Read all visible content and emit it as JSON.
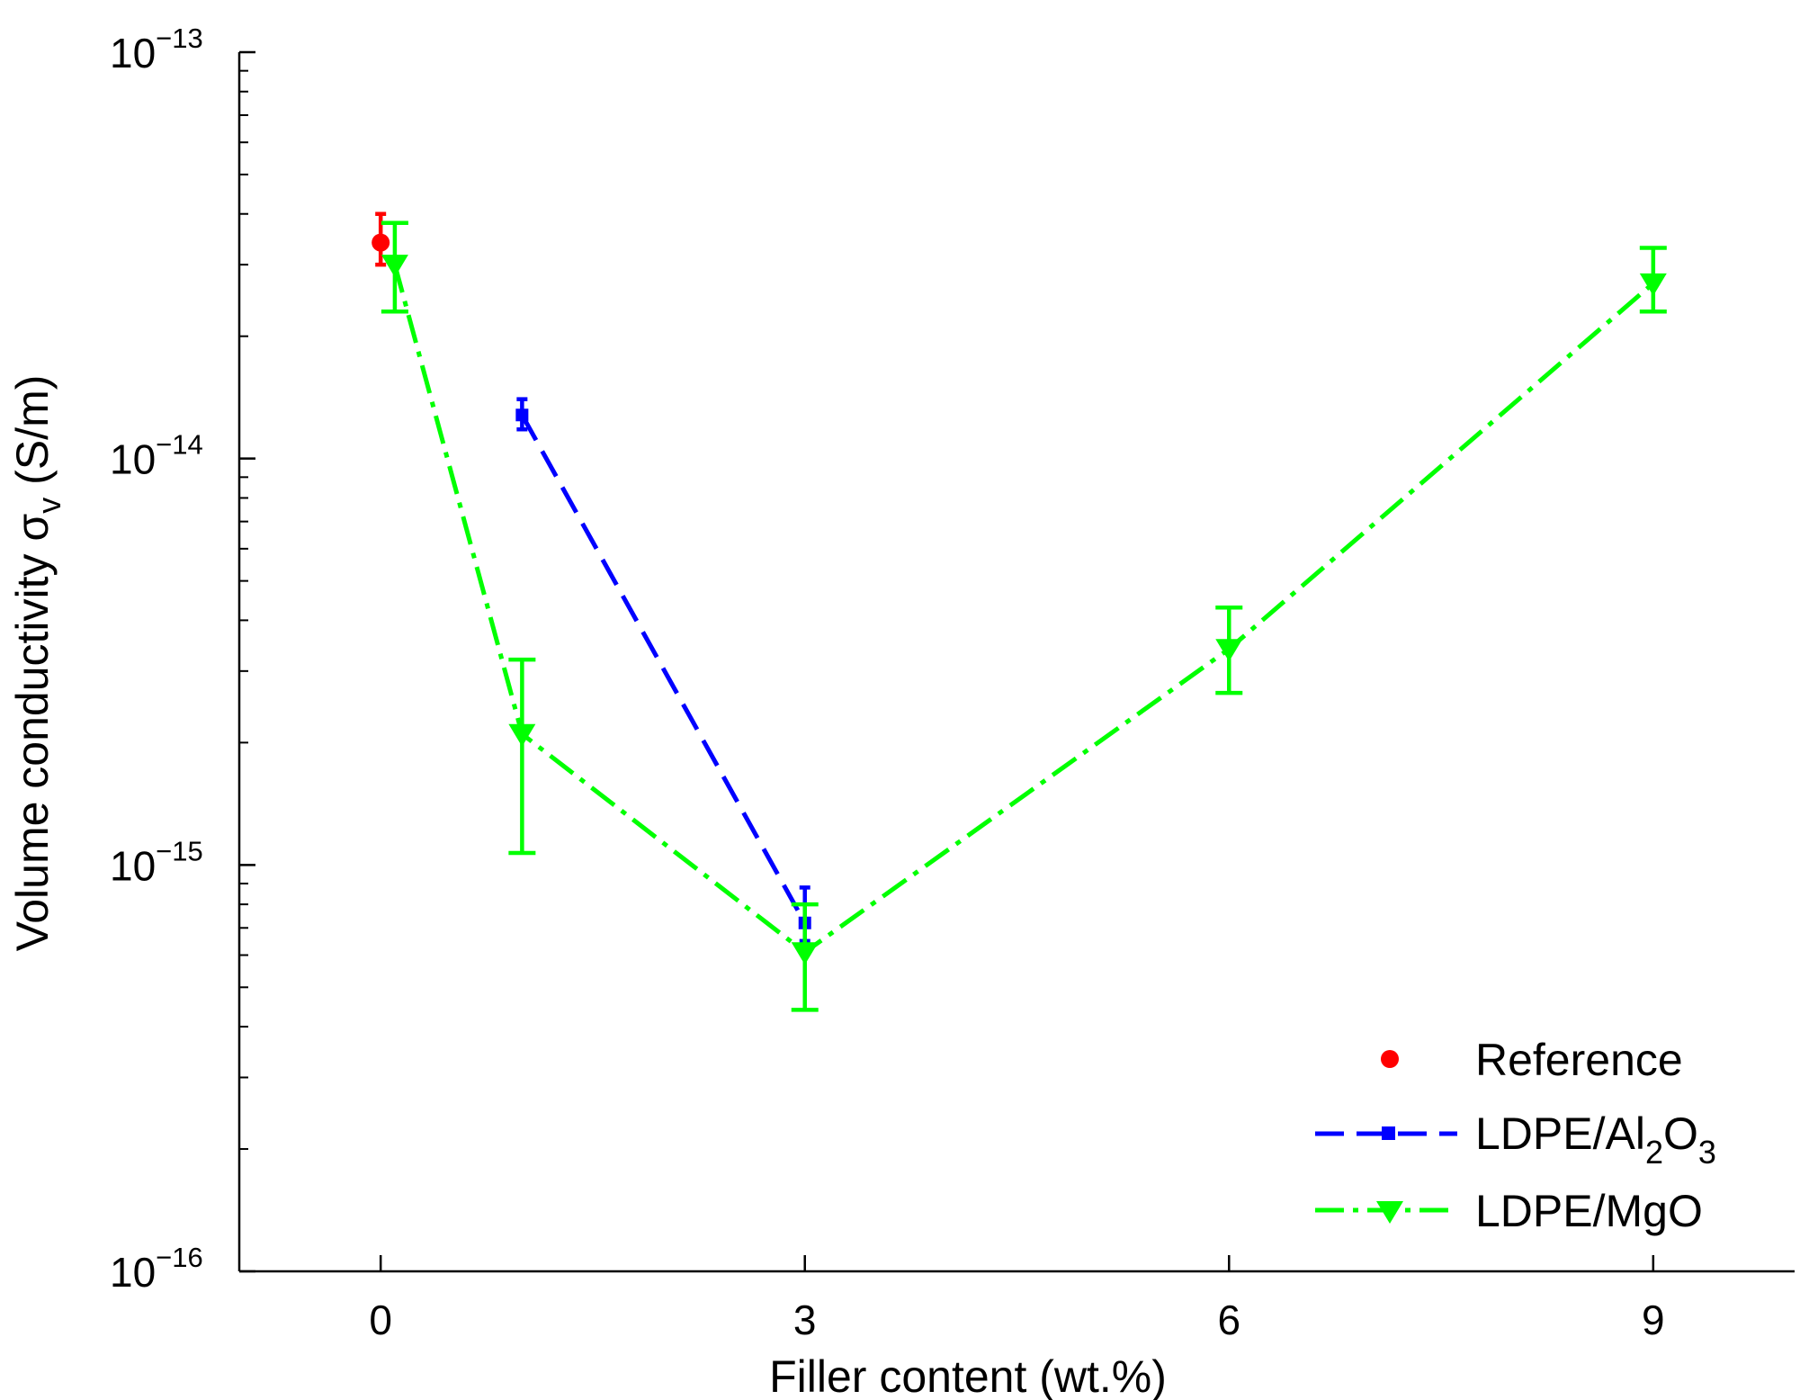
{
  "chart_data": {
    "type": "line",
    "xlabel": "Filler content (wt.%)",
    "ylabel": "Volume conductivity  σ",
    "ylabel_sub": "v",
    "ylabel_unit": " (S/m)",
    "xlim": [
      -1,
      10
    ],
    "ylim": [
      1e-16,
      1e-13
    ],
    "yscale": "log",
    "grid": false,
    "legend_position": "bottom-right",
    "x_ticks": [
      0,
      3,
      6,
      9
    ],
    "x_tick_labels": [
      "0",
      "3",
      "6",
      "9"
    ],
    "y_ticks": [
      1e-13,
      1e-14,
      1e-15,
      1e-16
    ],
    "y_tick_labels": [
      {
        "base": "10",
        "exp": "−13"
      },
      {
        "base": "10",
        "exp": "−14"
      },
      {
        "base": "10",
        "exp": "−15"
      },
      {
        "base": "10",
        "exp": "−16"
      }
    ],
    "series": [
      {
        "name": "Reference",
        "color": "#ff0000",
        "marker": "circle",
        "line": "none",
        "points": [
          {
            "x": 0,
            "y": 3.4e-14,
            "err_low": 3e-14,
            "err_high": 4e-14
          }
        ]
      },
      {
        "name": "LDPE/Al2O3",
        "legend_parts": [
          "LDPE/Al",
          "2",
          "O",
          "3"
        ],
        "color": "#0000ff",
        "marker": "square",
        "line": "dashed",
        "points": [
          {
            "x": 1,
            "y": 1.28e-14,
            "err_low": 1.18e-14,
            "err_high": 1.4e-14
          },
          {
            "x": 3,
            "y": 7.2e-16,
            "err_low": 6.5e-16,
            "err_high": 8.8e-16
          }
        ]
      },
      {
        "name": "LDPE/MgO",
        "color": "#00ff00",
        "marker": "triangle-down",
        "line": "dash-dot",
        "points": [
          {
            "x": 0.1,
            "y": 3e-14,
            "err_low": 2.3e-14,
            "err_high": 3.8e-14
          },
          {
            "x": 1,
            "y": 2.1e-15,
            "err_low": 1.07e-15,
            "err_high": 3.2e-15
          },
          {
            "x": 3,
            "y": 6.1e-16,
            "err_low": 4.4e-16,
            "err_high": 8e-16
          },
          {
            "x": 6,
            "y": 3.4e-15,
            "err_low": 2.65e-15,
            "err_high": 4.3e-15
          },
          {
            "x": 9,
            "y": 2.7e-14,
            "err_low": 2.3e-14,
            "err_high": 3.3e-14
          }
        ]
      }
    ]
  }
}
